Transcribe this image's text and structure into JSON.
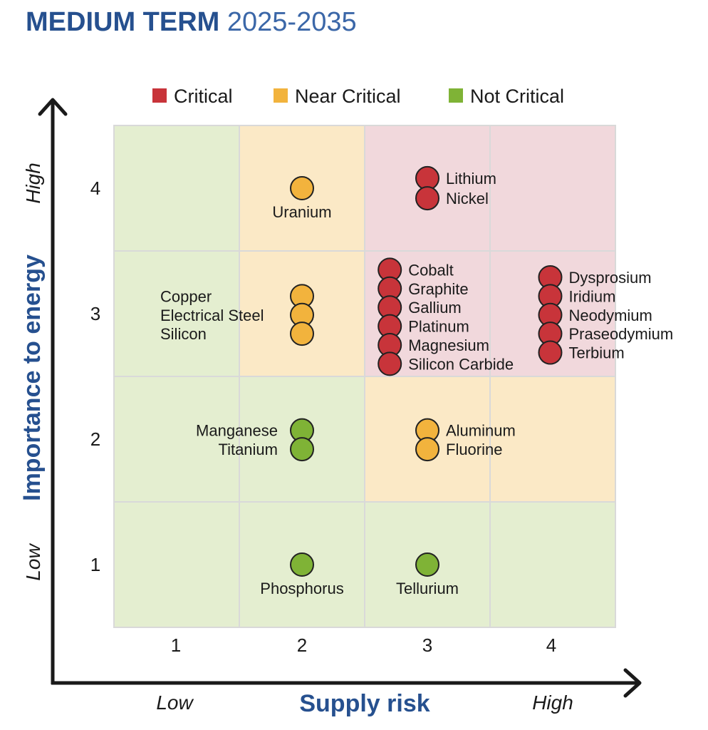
{
  "title": {
    "bold": "MEDIUM TERM",
    "light": "2025-2035"
  },
  "legend": [
    {
      "label": "Critical",
      "color": "#c8343a"
    },
    {
      "label": "Near Critical",
      "color": "#f2b33d"
    },
    {
      "label": "Not Critical",
      "color": "#7fb336"
    }
  ],
  "axes": {
    "x": {
      "label": "Supply risk",
      "low": "Low",
      "high": "High",
      "ticks": [
        "1",
        "2",
        "3",
        "4"
      ]
    },
    "y": {
      "label": "Importance to energy",
      "low": "Low",
      "high": "High",
      "ticks": [
        "1",
        "2",
        "3",
        "4"
      ]
    }
  },
  "chart_data": {
    "type": "scatter",
    "xlabel": "Supply risk",
    "ylabel": "Importance to energy",
    "xlim": [
      0.5,
      4.5
    ],
    "ylim": [
      0.5,
      4.5
    ],
    "cell_levels": [
      [
        "not_critical",
        "near_critical",
        "critical",
        "critical"
      ],
      [
        "not_critical",
        "near_critical",
        "critical",
        "critical"
      ],
      [
        "not_critical",
        "not_critical",
        "near_critical",
        "near_critical"
      ],
      [
        "not_critical",
        "not_critical",
        "not_critical",
        "not_critical"
      ]
    ],
    "cell_level_rows": [
      "4",
      "3",
      "2",
      "1"
    ],
    "level_fill": {
      "critical": "#f1d8dc",
      "near_critical": "#fbe9c6",
      "not_critical": "#e4eed0"
    },
    "series": [
      {
        "name": "Critical",
        "color": "#c8343a",
        "points": [
          {
            "label": "Lithium",
            "x": 3.0,
            "y": 4.08
          },
          {
            "label": "Nickel",
            "x": 3.0,
            "y": 3.92
          },
          {
            "label": "Cobalt",
            "x": 2.7,
            "y": 3.35
          },
          {
            "label": "Graphite",
            "x": 2.7,
            "y": 3.2
          },
          {
            "label": "Gallium",
            "x": 2.7,
            "y": 3.05
          },
          {
            "label": "Platinum",
            "x": 2.7,
            "y": 2.9
          },
          {
            "label": "Magnesium",
            "x": 2.7,
            "y": 2.75
          },
          {
            "label": "Silicon Carbide",
            "x": 2.7,
            "y": 2.6
          },
          {
            "label": "Dysprosium",
            "x": 3.98,
            "y": 3.29
          },
          {
            "label": "Iridium",
            "x": 3.98,
            "y": 3.14
          },
          {
            "label": "Neodymium",
            "x": 3.98,
            "y": 2.99
          },
          {
            "label": "Praseodymium",
            "x": 3.98,
            "y": 2.84
          },
          {
            "label": "Terbium",
            "x": 3.98,
            "y": 2.69
          }
        ]
      },
      {
        "name": "Near Critical",
        "color": "#f2b33d",
        "points": [
          {
            "label": "Uranium",
            "x": 2.0,
            "y": 4.0
          },
          {
            "label": "Copper",
            "x": 2.0,
            "y": 3.14
          },
          {
            "label": "Electrical Steel",
            "x": 2.0,
            "y": 2.99
          },
          {
            "label": "Silicon",
            "x": 2.0,
            "y": 2.84
          },
          {
            "label": "Aluminum",
            "x": 3.0,
            "y": 2.07
          },
          {
            "label": "Fluorine",
            "x": 3.0,
            "y": 1.92
          }
        ]
      },
      {
        "name": "Not Critical",
        "color": "#7fb336",
        "points": [
          {
            "label": "Manganese",
            "x": 2.0,
            "y": 2.07
          },
          {
            "label": "Titanium",
            "x": 2.0,
            "y": 1.92
          },
          {
            "label": "Phosphorus",
            "x": 2.0,
            "y": 1.0
          },
          {
            "label": "Tellurium",
            "x": 3.0,
            "y": 1.0
          }
        ]
      }
    ]
  }
}
